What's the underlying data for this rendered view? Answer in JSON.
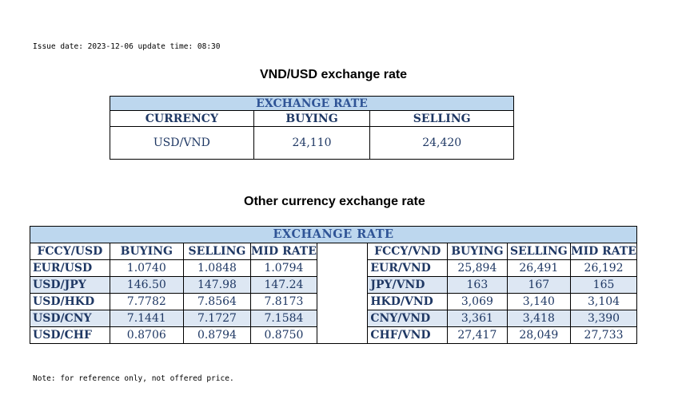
{
  "header": {
    "issue_line": "Issue date: 2023-12-06 update time: 08:30"
  },
  "usd_section": {
    "title": "VND/USD exchange rate",
    "band": "EXCHANGE RATE",
    "columns": [
      "CURRENCY",
      "BUYING",
      "SELLING"
    ],
    "row": {
      "currency": "USD/VND",
      "buying": "24,110",
      "selling": "24,420"
    }
  },
  "other_section": {
    "title": "Other currency exchange rate",
    "band": "EXCHANGE  RATE",
    "left_columns": [
      "FCCY/USD",
      "BUYING",
      "SELLING",
      "MID RATE"
    ],
    "right_columns": [
      "FCCY/VND",
      "BUYING",
      "SELLING",
      "MID RATE"
    ],
    "rows": [
      {
        "l_pair": "EUR/USD",
        "l_buy": "1.0740",
        "l_sell": "1.0848",
        "l_mid": "1.0794",
        "r_pair": "EUR/VND",
        "r_buy": "25,894",
        "r_sell": "26,491",
        "r_mid": "26,192"
      },
      {
        "l_pair": "USD/JPY",
        "l_buy": "146.50",
        "l_sell": "147.98",
        "l_mid": "147.24",
        "r_pair": "JPY/VND",
        "r_buy": "163",
        "r_sell": "167",
        "r_mid": "165"
      },
      {
        "l_pair": "USD/HKD",
        "l_buy": "7.7782",
        "l_sell": "7.8564",
        "l_mid": "7.8173",
        "r_pair": "HKD/VND",
        "r_buy": "3,069",
        "r_sell": "3,140",
        "r_mid": "3,104"
      },
      {
        "l_pair": "USD/CNY",
        "l_buy": "7.1441",
        "l_sell": "7.1727",
        "l_mid": "7.1584",
        "r_pair": "CNY/VND",
        "r_buy": "3,361",
        "r_sell": "3,418",
        "r_mid": "3,390"
      },
      {
        "l_pair": "USD/CHF",
        "l_buy": "0.8706",
        "l_sell": "0.8794",
        "l_mid": "0.8750",
        "r_pair": "CHF/VND",
        "r_buy": "27,417",
        "r_sell": "28,049",
        "r_mid": "27,733"
      }
    ]
  },
  "footer": {
    "note": "Note: for reference only, not offered price."
  },
  "colors": {
    "band_fill": "#bdd7ee",
    "row_shade": "#dde7f3",
    "text_navy": "#1f3864"
  }
}
